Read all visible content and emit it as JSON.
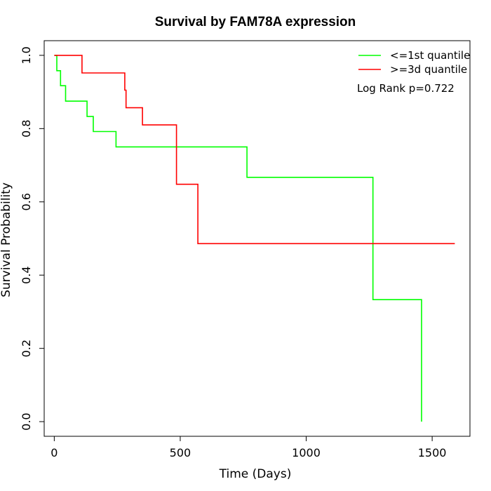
{
  "chart_data": {
    "type": "line",
    "subtype": "kaplan-meier-step",
    "title": "Survival by FAM78A expression",
    "xlabel": "Time (Days)",
    "ylabel": "Survival Probability",
    "xlim": [
      -40,
      1650
    ],
    "ylim": [
      -0.04,
      1.04
    ],
    "x_ticks": [
      0,
      500,
      1000,
      1500
    ],
    "y_ticks": [
      0.0,
      0.2,
      0.4,
      0.6,
      0.8,
      1.0
    ],
    "x_tick_labels": [
      "0",
      "500",
      "1000",
      "1500"
    ],
    "y_tick_labels": [
      "0.0",
      "0.2",
      "0.4",
      "0.6",
      "0.8",
      "1.0"
    ],
    "legend_position": "top-right",
    "annotation": "Log Rank p=0.722",
    "series": [
      {
        "name": "<=1st quantile",
        "color": "#00ff00",
        "points": [
          [
            0,
            1.0
          ],
          [
            10,
            1.0
          ],
          [
            10,
            0.958
          ],
          [
            25,
            0.958
          ],
          [
            25,
            0.917
          ],
          [
            45,
            0.917
          ],
          [
            45,
            0.875
          ],
          [
            130,
            0.875
          ],
          [
            130,
            0.833
          ],
          [
            155,
            0.833
          ],
          [
            155,
            0.792
          ],
          [
            245,
            0.792
          ],
          [
            245,
            0.75
          ],
          [
            765,
            0.75
          ],
          [
            765,
            0.667
          ],
          [
            1265,
            0.667
          ],
          [
            1265,
            0.333
          ],
          [
            1458,
            0.333
          ],
          [
            1458,
            0.0
          ]
        ]
      },
      {
        "name": ">=3d quantile",
        "color": "#ff0000",
        "points": [
          [
            0,
            1.0
          ],
          [
            110,
            1.0
          ],
          [
            110,
            0.952
          ],
          [
            280,
            0.952
          ],
          [
            280,
            0.905
          ],
          [
            285,
            0.905
          ],
          [
            285,
            0.857
          ],
          [
            350,
            0.857
          ],
          [
            350,
            0.81
          ],
          [
            485,
            0.81
          ],
          [
            485,
            0.648
          ],
          [
            570,
            0.648
          ],
          [
            570,
            0.486
          ],
          [
            1590,
            0.486
          ]
        ]
      }
    ]
  }
}
